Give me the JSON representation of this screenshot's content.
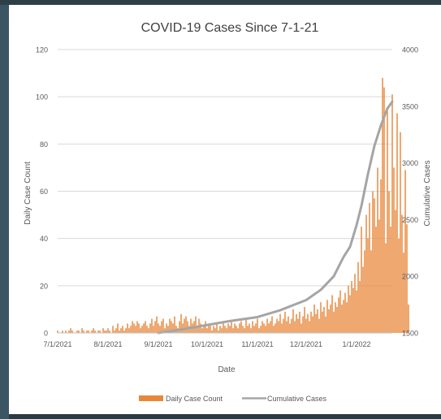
{
  "chart_data": {
    "type": "bar+line",
    "title": "COVID-19 Cases Since 7-1-21",
    "xlabel": "Date",
    "ylabel_left": "Daily Case Count",
    "ylabel_right": "Cumulative Cases",
    "y_left_lim": [
      0,
      120
    ],
    "y_left_ticks": [
      "0",
      "20",
      "40",
      "60",
      "80",
      "100",
      "120"
    ],
    "y_right_lim": [
      1500,
      4000
    ],
    "y_right_ticks": [
      "1500",
      "2000",
      "2500",
      "3000",
      "3500",
      "4000"
    ],
    "x_range": [
      "2021-07-01",
      "2022-01-23"
    ],
    "x_ticks": [
      {
        "date": "2021-07-01",
        "label": "7/1/2021"
      },
      {
        "date": "2021-08-01",
        "label": "8/1/2021"
      },
      {
        "date": "2021-09-01",
        "label": "9/1/2021"
      },
      {
        "date": "2021-10-01",
        "label": "10/1/2021"
      },
      {
        "date": "2021-11-01",
        "label": "11/1/2021"
      },
      {
        "date": "2021-12-01",
        "label": "12/1/2021"
      },
      {
        "date": "2022-01-01",
        "label": "1/1/2022"
      }
    ],
    "grid": true,
    "legend_position": "bottom",
    "series": [
      {
        "name": "Daily Case Count",
        "type": "bar",
        "color": "#e8873a",
        "start_date": "2021-07-01",
        "values": [
          1,
          0,
          0,
          1,
          0,
          1,
          0,
          1,
          2,
          1,
          0,
          0,
          1,
          1,
          0,
          2,
          1,
          0,
          1,
          1,
          0,
          1,
          2,
          1,
          0,
          1,
          1,
          0,
          2,
          1,
          1,
          2,
          1,
          0,
          3,
          1,
          2,
          4,
          1,
          2,
          3,
          1,
          2,
          4,
          2,
          3,
          5,
          4,
          3,
          5,
          4,
          2,
          3,
          4,
          5,
          3,
          2,
          4,
          6,
          3,
          5,
          7,
          4,
          3,
          5,
          6,
          2,
          4,
          3,
          6,
          5,
          4,
          7,
          3,
          2,
          5,
          8,
          4,
          6,
          7,
          5,
          3,
          6,
          4,
          5,
          7,
          3,
          6,
          4,
          2,
          3,
          5,
          2,
          4,
          3,
          1,
          3,
          2,
          4,
          1,
          3,
          2,
          5,
          3,
          2,
          4,
          3,
          5,
          2,
          4,
          3,
          2,
          4,
          5,
          3,
          2,
          6,
          3,
          4,
          2,
          5,
          3,
          4,
          6,
          2,
          3,
          5,
          4,
          3,
          6,
          4,
          5,
          7,
          3,
          4,
          6,
          5,
          8,
          4,
          6,
          9,
          5,
          7,
          4,
          6,
          10,
          5,
          8,
          6,
          9,
          4,
          7,
          11,
          6,
          8,
          5,
          9,
          7,
          12,
          8,
          10,
          6,
          13,
          9,
          11,
          7,
          14,
          10,
          12,
          16,
          9,
          13,
          11,
          15,
          18,
          12,
          14,
          17,
          13,
          20,
          16,
          22,
          19,
          25,
          18,
          30,
          22,
          45,
          28,
          35,
          50,
          40,
          55,
          35,
          60,
          57,
          45,
          70,
          48,
          65,
          108,
          104,
          38,
          94,
          60,
          45,
          101,
          70,
          52,
          93,
          40,
          85,
          50,
          34,
          69,
          46,
          12
        ],
        "color_hex": "#e8873a"
      },
      {
        "name": "Cumulative Cases",
        "type": "line",
        "color": "#a5a5a5",
        "points": [
          {
            "date": "2021-09-01",
            "value": 1500
          },
          {
            "date": "2021-09-15",
            "value": 1530
          },
          {
            "date": "2021-10-01",
            "value": 1570
          },
          {
            "date": "2021-10-15",
            "value": 1605
          },
          {
            "date": "2021-11-01",
            "value": 1640
          },
          {
            "date": "2021-11-15",
            "value": 1700
          },
          {
            "date": "2021-12-01",
            "value": 1790
          },
          {
            "date": "2021-12-10",
            "value": 1880
          },
          {
            "date": "2021-12-18",
            "value": 2000
          },
          {
            "date": "2021-12-24",
            "value": 2170
          },
          {
            "date": "2021-12-28",
            "value": 2260
          },
          {
            "date": "2022-01-01",
            "value": 2450
          },
          {
            "date": "2022-01-04",
            "value": 2620
          },
          {
            "date": "2022-01-08",
            "value": 2900
          },
          {
            "date": "2022-01-12",
            "value": 3150
          },
          {
            "date": "2022-01-16",
            "value": 3330
          },
          {
            "date": "2022-01-20",
            "value": 3480
          },
          {
            "date": "2022-01-23",
            "value": 3540
          }
        ]
      }
    ]
  }
}
